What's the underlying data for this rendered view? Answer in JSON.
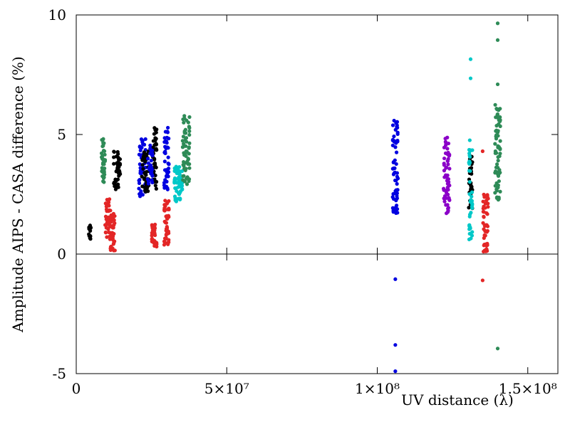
{
  "chart_data": {
    "type": "scatter",
    "title": "",
    "xlabel": "UV distance (λ)",
    "ylabel": "Amplitude AIPS - CASA difference (%)",
    "xlim": [
      0,
      160000000
    ],
    "ylim": [
      -5,
      10
    ],
    "x_ticks": [
      {
        "value": 0,
        "label": "0"
      },
      {
        "value": 50000000,
        "label": "5×10⁷"
      },
      {
        "value": 100000000,
        "label": "1×10⁸"
      },
      {
        "value": 150000000,
        "label": "1.5×10⁸"
      }
    ],
    "y_ticks": [
      {
        "value": -5,
        "label": "-5"
      },
      {
        "value": 0,
        "label": "0"
      },
      {
        "value": 5,
        "label": "5"
      },
      {
        "value": 10,
        "label": "10"
      }
    ],
    "zero_line": 0,
    "grid": false,
    "clusters": [
      {
        "color": "#000000",
        "x": 4500000,
        "x_spread": 400000,
        "y_min": 0.5,
        "y_max": 1.2,
        "n": 14
      },
      {
        "color": "#2e8b57",
        "x": 9000000,
        "x_spread": 600000,
        "y_min": 3.0,
        "y_max": 4.9,
        "n": 40
      },
      {
        "color": "#e32626",
        "x": 10500000,
        "x_spread": 900000,
        "y_min": 0.7,
        "y_max": 2.3,
        "n": 40
      },
      {
        "color": "#e32626",
        "x": 12000000,
        "x_spread": 900000,
        "y_min": 0.1,
        "y_max": 1.7,
        "n": 45
      },
      {
        "color": "#000000",
        "x": 13500000,
        "x_spread": 1100000,
        "y_min": 2.7,
        "y_max": 4.3,
        "n": 45
      },
      {
        "color": "#0000e0",
        "x": 22000000,
        "x_spread": 1200000,
        "y_min": 2.4,
        "y_max": 4.9,
        "n": 50
      },
      {
        "color": "#000000",
        "x": 23000000,
        "x_spread": 1200000,
        "y_min": 2.6,
        "y_max": 4.3,
        "n": 45
      },
      {
        "color": "#000000",
        "x": 26000000,
        "x_spread": 700000,
        "y_min": 2.7,
        "y_max": 5.3,
        "n": 40
      },
      {
        "color": "#0000e0",
        "x": 24500000,
        "x_spread": 900000,
        "y_min": 2.9,
        "y_max": 4.6,
        "n": 30
      },
      {
        "color": "#e32626",
        "x": 26000000,
        "x_spread": 900000,
        "y_min": 0.3,
        "y_max": 1.3,
        "n": 35
      },
      {
        "color": "#0000e0",
        "x": 30000000,
        "x_spread": 800000,
        "y_min": 2.7,
        "y_max": 5.4,
        "n": 45
      },
      {
        "color": "#e32626",
        "x": 30000000,
        "x_spread": 800000,
        "y_min": 0.3,
        "y_max": 2.3,
        "n": 45
      },
      {
        "color": "#00c8c8",
        "x": 34000000,
        "x_spread": 1400000,
        "y_min": 2.2,
        "y_max": 3.7,
        "n": 60
      },
      {
        "color": "#2e8b57",
        "x": 36500000,
        "x_spread": 1200000,
        "y_min": 2.9,
        "y_max": 5.9,
        "n": 60
      },
      {
        "color": "#0000e0",
        "x": 106000000,
        "x_spread": 900000,
        "y_min": 1.7,
        "y_max": 5.6,
        "n": 60
      },
      {
        "color": "#8b00c8",
        "x": 123000000,
        "x_spread": 1000000,
        "y_min": 1.7,
        "y_max": 5.0,
        "n": 60
      },
      {
        "color": "#000000",
        "x": 131000000,
        "x_spread": 600000,
        "y_min": 1.9,
        "y_max": 4.3,
        "n": 35
      },
      {
        "color": "#00c8c8",
        "x": 131000000,
        "x_spread": 600000,
        "y_min": 0.6,
        "y_max": 4.9,
        "n": 40
      },
      {
        "color": "#e32626",
        "x": 136000000,
        "x_spread": 900000,
        "y_min": 0.1,
        "y_max": 2.5,
        "n": 50
      },
      {
        "color": "#2e8b57",
        "x": 140000000,
        "x_spread": 900000,
        "y_min": 2.2,
        "y_max": 6.3,
        "n": 70
      }
    ],
    "points": [
      {
        "x": 106000000,
        "y": -1.05,
        "color": "#0000e0"
      },
      {
        "x": 106000000,
        "y": -3.8,
        "color": "#0000e0"
      },
      {
        "x": 106000000,
        "y": -4.9,
        "color": "#0000e0"
      },
      {
        "x": 131000000,
        "y": 8.15,
        "color": "#00c8c8"
      },
      {
        "x": 131000000,
        "y": 7.35,
        "color": "#00c8c8"
      },
      {
        "x": 135000000,
        "y": 4.3,
        "color": "#e32626"
      },
      {
        "x": 135000000,
        "y": -1.1,
        "color": "#e32626"
      },
      {
        "x": 140000000,
        "y": 9.65,
        "color": "#2e8b57"
      },
      {
        "x": 140000000,
        "y": 8.95,
        "color": "#2e8b57"
      },
      {
        "x": 140000000,
        "y": 7.1,
        "color": "#2e8b57"
      },
      {
        "x": 140000000,
        "y": -3.95,
        "color": "#2e8b57"
      }
    ]
  }
}
